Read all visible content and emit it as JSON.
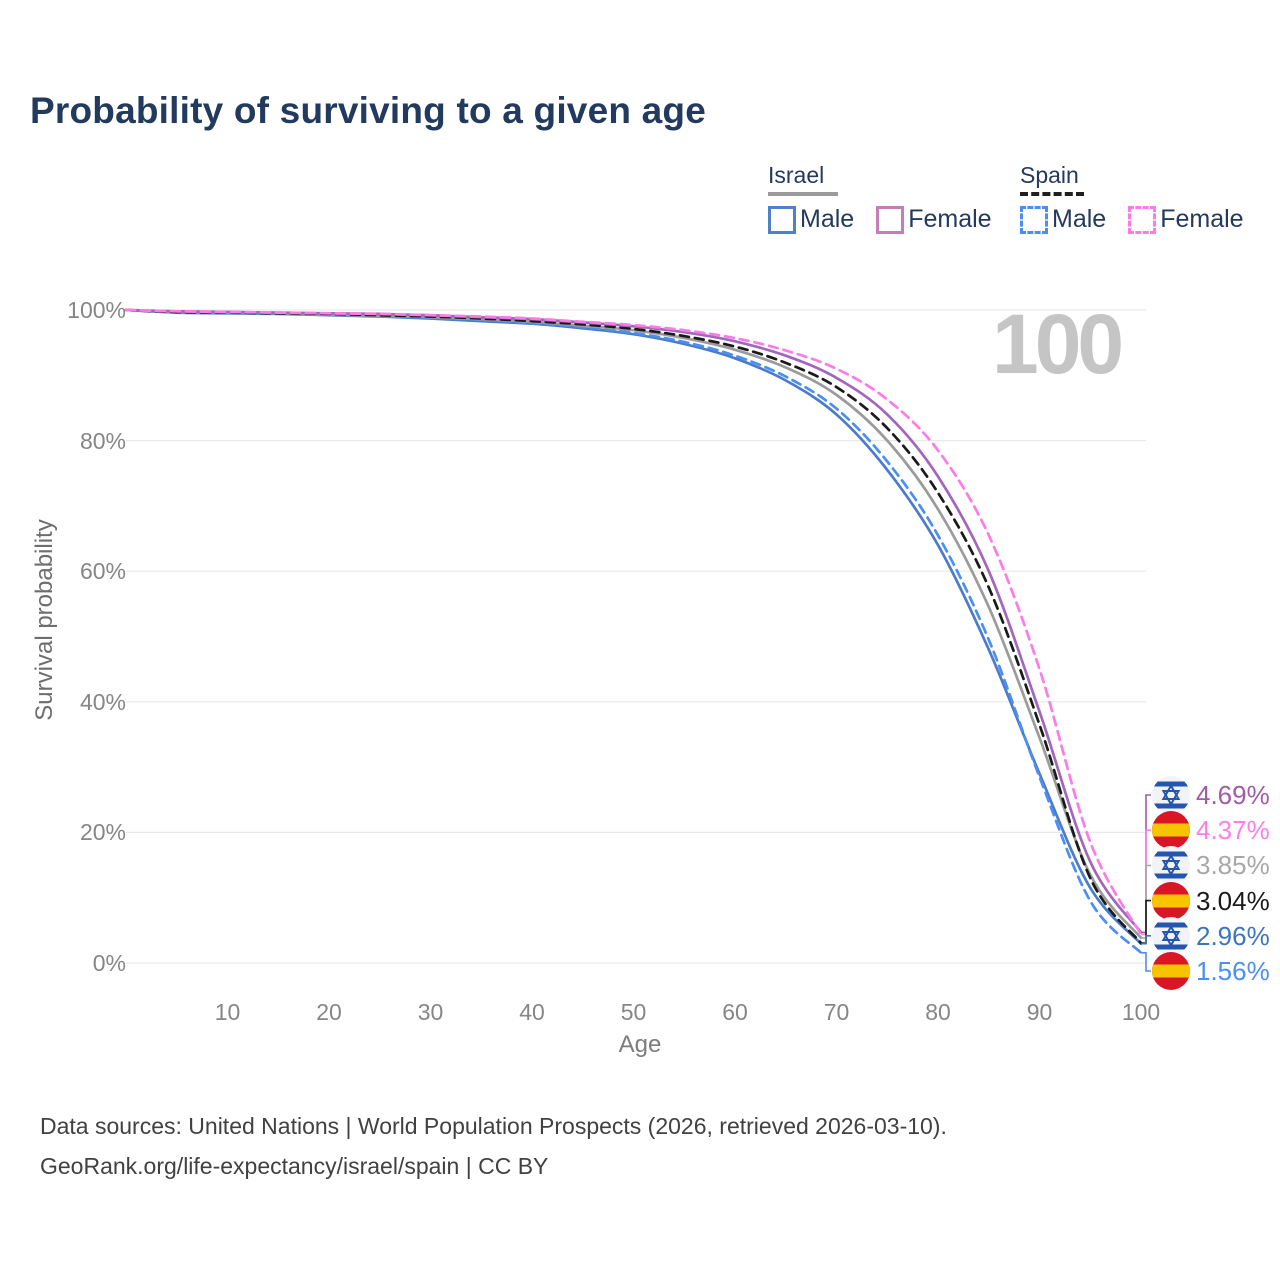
{
  "title": "Probability of surviving to a given age",
  "watermark": "100",
  "legend": {
    "israel": {
      "label": "Israel",
      "male": "Male",
      "female": "Female"
    },
    "spain": {
      "label": "Spain",
      "male": "Male",
      "female": "Female"
    },
    "colors": {
      "israel_male_swatch": "#4f80c8",
      "israel_female_swatch": "#c47fb8",
      "spain_male_swatch": "#4d8ef2",
      "spain_female_swatch": "#fb7ce8",
      "israel_underline": "#9b9b9b",
      "spain_underline": "#1f1f1f"
    }
  },
  "chart_data": {
    "type": "line",
    "title": "Probability of surviving to a given age",
    "xlabel": "Age",
    "ylabel": "Survival probability",
    "xlim": [
      0,
      100
    ],
    "ylim": [
      0,
      100
    ],
    "grid": "horizontal",
    "legend_position": "top-right",
    "x_ticks": [
      {
        "v": 10,
        "label": "10"
      },
      {
        "v": 20,
        "label": "20"
      },
      {
        "v": 30,
        "label": "30"
      },
      {
        "v": 40,
        "label": "40"
      },
      {
        "v": 50,
        "label": "50"
      },
      {
        "v": 60,
        "label": "60"
      },
      {
        "v": 70,
        "label": "70"
      },
      {
        "v": 80,
        "label": "80"
      },
      {
        "v": 90,
        "label": "90"
      },
      {
        "v": 100,
        "label": "100"
      }
    ],
    "y_ticks": [
      {
        "v": 0,
        "label": "0%"
      },
      {
        "v": 20,
        "label": "20%"
      },
      {
        "v": 40,
        "label": "40%"
      },
      {
        "v": 60,
        "label": "60%"
      },
      {
        "v": 80,
        "label": "80%"
      },
      {
        "v": 100,
        "label": "100%"
      }
    ],
    "ages": [
      0,
      5,
      10,
      15,
      20,
      25,
      30,
      35,
      40,
      45,
      50,
      55,
      60,
      65,
      70,
      75,
      80,
      85,
      90,
      95,
      100
    ],
    "series": [
      {
        "id": "israel-male",
        "name": "Israel Male",
        "color": "#4a7cc9",
        "dashed": false,
        "end_value": "2.96%",
        "values": [
          100,
          99.6,
          99.5,
          99.4,
          99.2,
          99.0,
          98.7,
          98.3,
          97.9,
          97.2,
          96.3,
          94.8,
          92.6,
          89.2,
          84.0,
          75.5,
          64.0,
          48.0,
          29.0,
          11.5,
          2.96
        ]
      },
      {
        "id": "spain-male",
        "name": "Spain Male",
        "color": "#4d8ef2",
        "dashed": true,
        "end_value": "1.56%",
        "values": [
          100,
          99.7,
          99.6,
          99.5,
          99.3,
          99.1,
          98.8,
          98.5,
          98.0,
          97.4,
          96.5,
          95.1,
          93.0,
          89.8,
          84.9,
          76.8,
          65.5,
          49.5,
          28.5,
          9.5,
          1.56
        ]
      },
      {
        "id": "israel-all",
        "name": "Israel (both sexes)",
        "color": "#9b9b9b",
        "dashed": false,
        "end_value": "3.85%",
        "values": [
          100,
          99.7,
          99.6,
          99.5,
          99.3,
          99.1,
          98.9,
          98.6,
          98.2,
          97.6,
          96.9,
          95.7,
          93.9,
          91.2,
          87.0,
          80.0,
          69.5,
          54.5,
          34.5,
          13.5,
          3.85
        ]
      },
      {
        "id": "spain-all",
        "name": "Spain (both sexes)",
        "color": "#1a1a1a",
        "dashed": true,
        "end_value": "3.04%",
        "values": [
          100,
          99.7,
          99.6,
          99.5,
          99.4,
          99.2,
          99.0,
          98.7,
          98.3,
          97.8,
          97.1,
          96.0,
          94.4,
          91.9,
          88.2,
          81.9,
          72.0,
          57.5,
          36.5,
          13.0,
          3.04
        ]
      },
      {
        "id": "israel-female",
        "name": "Israel Female",
        "color": "#a466bd",
        "dashed": false,
        "end_value": "4.69%",
        "values": [
          100,
          99.8,
          99.7,
          99.6,
          99.5,
          99.4,
          99.2,
          98.9,
          98.6,
          98.1,
          97.5,
          96.6,
          95.2,
          93.0,
          89.6,
          84.0,
          74.5,
          60.0,
          38.5,
          15.5,
          4.69
        ]
      },
      {
        "id": "spain-female",
        "name": "Spain Female",
        "color": "#fb7ce8",
        "dashed": true,
        "end_value": "4.37%",
        "values": [
          100,
          99.8,
          99.7,
          99.6,
          99.5,
          99.4,
          99.2,
          99.0,
          98.7,
          98.2,
          97.7,
          96.9,
          95.7,
          93.8,
          91.0,
          86.3,
          78.5,
          65.5,
          45.0,
          18.5,
          4.37
        ]
      }
    ],
    "end_labels": [
      {
        "series": "israel-female",
        "flag": "israel",
        "text": "4.69%",
        "color": "#a05ba8"
      },
      {
        "series": "spain-female",
        "flag": "spain",
        "text": "4.37%",
        "color": "#fc7fe9"
      },
      {
        "series": "israel-all",
        "flag": "israel",
        "text": "3.85%",
        "color": "#a8a8a8"
      },
      {
        "series": "spain-all",
        "flag": "spain",
        "text": "3.04%",
        "color": "#1a1a1a"
      },
      {
        "series": "israel-male",
        "flag": "israel",
        "text": "2.96%",
        "color": "#3d74c2"
      },
      {
        "series": "spain-male",
        "flag": "spain",
        "text": "1.56%",
        "color": "#4d8ef2"
      }
    ]
  },
  "flags": {
    "israel": {
      "bg": "#f2f3f5",
      "blue": "#2456b0"
    },
    "spain": {
      "red": "#d81626",
      "yellow": "#f8c400"
    }
  },
  "footer": {
    "line1": "Data sources: United Nations | World Population Prospects (2026, retrieved 2026-03-10).",
    "line2": "GeoRank.org/life-expectancy/israel/spain | CC BY"
  }
}
